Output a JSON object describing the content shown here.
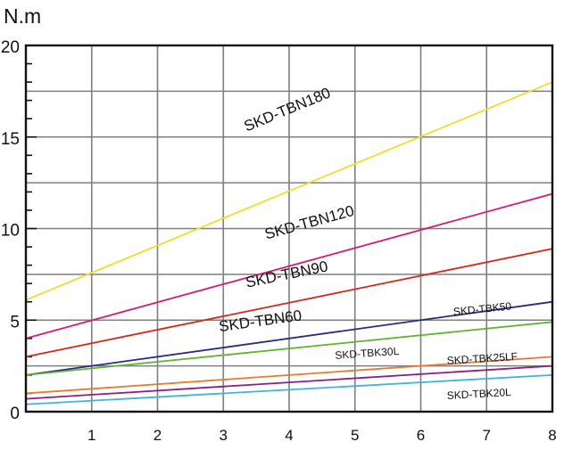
{
  "chart_data": {
    "type": "line",
    "ylabel": "N.m",
    "xlim": [
      0,
      8
    ],
    "ylim": [
      0,
      20
    ],
    "xticks": [
      "1",
      "2",
      "3",
      "4",
      "5",
      "6",
      "7",
      "8"
    ],
    "yticks": [
      "0",
      "5",
      "10",
      "15",
      "20"
    ],
    "grid": true,
    "series": [
      {
        "name": "SKD-TBN180",
        "color": "#f2dc2a",
        "x": [
          0,
          8
        ],
        "y": [
          6.1,
          18.0
        ]
      },
      {
        "name": "SKD-TBN120",
        "color": "#d6197d",
        "x": [
          0,
          8
        ],
        "y": [
          4.0,
          11.9
        ]
      },
      {
        "name": "SKD-TBN90",
        "color": "#d4281c",
        "x": [
          0,
          8
        ],
        "y": [
          3.0,
          8.9
        ]
      },
      {
        "name": "SKD-TBN60",
        "color": "#2b2a7a",
        "x": [
          0,
          8
        ],
        "y": [
          2.0,
          6.0
        ]
      },
      {
        "name": "SKD-TBK50",
        "color": "#61b334",
        "x": [
          0,
          8
        ],
        "y": [
          2.0,
          4.9
        ]
      },
      {
        "name": "SKD-TBK30L",
        "color": "#e67a33",
        "x": [
          0,
          8
        ],
        "y": [
          1.0,
          3.0
        ]
      },
      {
        "name": "SKD-TBK25LF",
        "color": "#8b1e82",
        "x": [
          0,
          8
        ],
        "y": [
          0.7,
          2.5
        ]
      },
      {
        "name": "SKD-TBK20L",
        "color": "#3fb4d9",
        "x": [
          0,
          8
        ],
        "y": [
          0.4,
          2.0
        ]
      }
    ]
  }
}
